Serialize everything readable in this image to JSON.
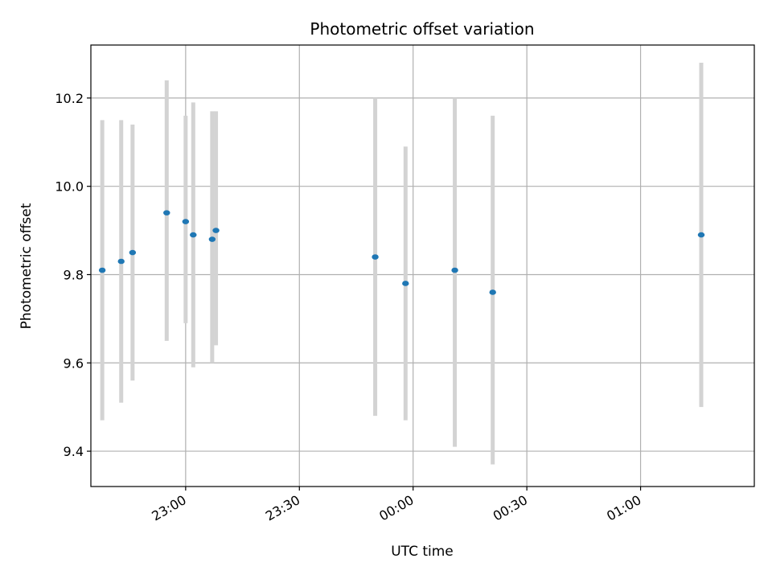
{
  "chart_data": {
    "type": "scatter",
    "title": "Photometric offset variation",
    "xlabel": "UTC time",
    "ylabel": "Photometric offset",
    "x_axis_kind": "time",
    "xlim": [
      "22:35",
      "01:30"
    ],
    "ylim": [
      9.32,
      10.32
    ],
    "grid": true,
    "x_ticks": [
      "23:00",
      "23:30",
      "00:00",
      "00:30",
      "01:00"
    ],
    "y_ticks": [
      "9.4",
      "9.6",
      "9.8",
      "10.0",
      "10.2"
    ],
    "marker_color": "#1f77b4",
    "errorbar_color": "#d3d3d3",
    "points": [
      {
        "time": "22:38",
        "y": 9.81,
        "lo": 9.47,
        "hi": 10.15
      },
      {
        "time": "22:43",
        "y": 9.83,
        "lo": 9.51,
        "hi": 10.15
      },
      {
        "time": "22:46",
        "y": 9.85,
        "lo": 9.56,
        "hi": 10.14
      },
      {
        "time": "22:55",
        "y": 9.94,
        "lo": 9.65,
        "hi": 10.24
      },
      {
        "time": "23:00",
        "y": 9.92,
        "lo": 9.69,
        "hi": 10.16
      },
      {
        "time": "23:02",
        "y": 9.89,
        "lo": 9.59,
        "hi": 10.19
      },
      {
        "time": "23:07",
        "y": 9.88,
        "lo": 9.6,
        "hi": 10.17
      },
      {
        "time": "23:08",
        "y": 9.9,
        "lo": 9.64,
        "hi": 10.17
      },
      {
        "time": "23:50",
        "y": 9.84,
        "lo": 9.48,
        "hi": 10.2
      },
      {
        "time": "23:58",
        "y": 9.78,
        "lo": 9.47,
        "hi": 10.09
      },
      {
        "time": "00:11",
        "y": 9.81,
        "lo": 9.41,
        "hi": 10.2
      },
      {
        "time": "00:21",
        "y": 9.76,
        "lo": 9.37,
        "hi": 10.16
      },
      {
        "time": "01:16",
        "y": 9.89,
        "lo": 9.5,
        "hi": 10.28
      }
    ]
  }
}
